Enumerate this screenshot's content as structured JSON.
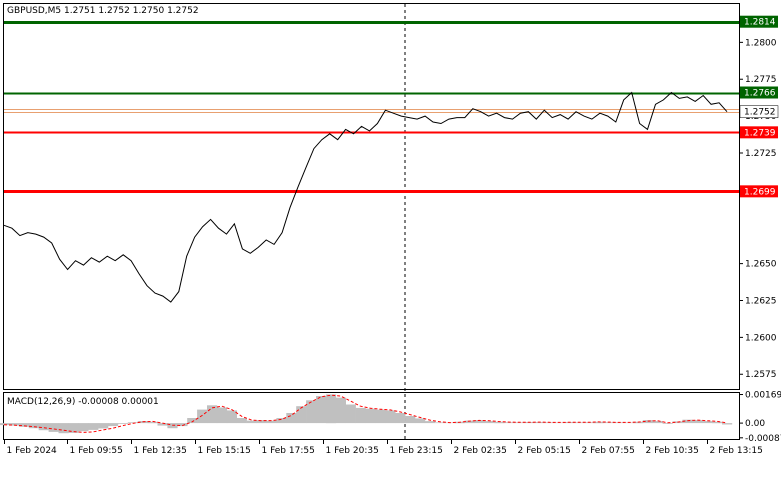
{
  "header": {
    "symbol_line": "GBPUSD,M5  1.2751 1.2752 1.2750 1.2752",
    "macd_line": "MACD(12,26,9) -0.00008 0.00001"
  },
  "chart_data": [
    {
      "type": "line",
      "title": "GBPUSD,M5",
      "ylim": [
        1.2565,
        1.2826
      ],
      "y_ticks": [
        "1.2800",
        "1.2775",
        "1.2750",
        "1.2725",
        "1.2650",
        "1.2625",
        "1.2600",
        "1.2575"
      ],
      "x_ticks": [
        "1 Feb 2024",
        "1 Feb 09:55",
        "1 Feb 12:35",
        "1 Feb 15:15",
        "1 Feb 17:55",
        "1 Feb 20:35",
        "1 Feb 23:15",
        "2 Feb 02:35",
        "2 Feb 05:15",
        "2 Feb 07:55",
        "2 Feb 10:35",
        "2 Feb 13:15"
      ],
      "series": [
        {
          "values": [
            1.2676,
            1.2674,
            1.2669,
            1.2671,
            1.267,
            1.2668,
            1.2664,
            1.2653,
            1.2646,
            1.2652,
            1.2649,
            1.2654,
            1.2651,
            1.2655,
            1.2652,
            1.2656,
            1.2652,
            1.2643,
            1.2635,
            1.263,
            1.2628,
            1.2624,
            1.2631,
            1.2655,
            1.2668,
            1.2675,
            1.268,
            1.2674,
            1.267,
            1.2677,
            1.266,
            1.2657,
            1.2661,
            1.2666,
            1.2663,
            1.2671,
            1.2688,
            1.2702,
            1.2715,
            1.2728,
            1.2734,
            1.2738,
            1.2734,
            1.2741,
            1.2738,
            1.2743,
            1.274,
            1.2745,
            1.2754,
            1.2752,
            1.275,
            1.2749,
            1.2748,
            1.275,
            1.2746,
            1.2745,
            1.2748,
            1.2749,
            1.2749,
            1.2755,
            1.2753,
            1.275,
            1.2752,
            1.2749,
            1.2748,
            1.2752,
            1.2753,
            1.2748,
            1.2754,
            1.2749,
            1.2751,
            1.2748,
            1.2753,
            1.275,
            1.2748,
            1.2752,
            1.275,
            1.2746,
            1.2761,
            1.2766,
            1.2745,
            1.2741,
            1.2758,
            1.2761,
            1.2766,
            1.2762,
            1.2763,
            1.276,
            1.2764,
            1.2758,
            1.2759,
            1.2753
          ]
        }
      ],
      "levels": [
        {
          "value": 1.2814,
          "label": "1.2814",
          "color": "#006400"
        },
        {
          "value": 1.2766,
          "label": "1.2766",
          "color": "#006400"
        },
        {
          "value": 1.2739,
          "label": "1.2739",
          "color": "#ff0000"
        },
        {
          "value": 1.2699,
          "label": "1.2699",
          "color": "#ff0000"
        }
      ],
      "bid_ask_lines": [
        1.2755,
        1.2753
      ],
      "current_price": "1.2752",
      "period_separator_label": "1 Feb 23:15",
      "grid": false
    },
    {
      "type": "bar",
      "title": "MACD(12,26,9)",
      "ylim": [
        -0.00094,
        0.00178
      ],
      "y_ticks": [
        "0.00169",
        "0.00",
        "-0.00087"
      ],
      "series": [
        {
          "name": "MACD",
          "values": [
            -0.00012,
            -0.00015,
            -0.00022,
            -0.0003,
            -0.00042,
            -0.00052,
            -0.0006,
            -0.00058,
            -0.00048,
            -0.0004,
            -0.00032,
            -0.00018,
            -5e-05,
            5e-05,
            0.00012,
            8e-05,
            -0.00015,
            -0.0003,
            -0.00018,
            0.0003,
            0.0008,
            0.00105,
            0.00092,
            0.00075,
            0.0003,
            0.00015,
            0.00018,
            0.00015,
            0.0003,
            0.0006,
            0.001,
            0.00135,
            0.0016,
            0.0017,
            0.0015,
            0.0011,
            0.0009,
            0.00085,
            0.0008,
            0.00075,
            0.0006,
            0.00042,
            0.00028,
            0.00012,
            4e-05,
            3e-05,
            8e-05,
            0.00015,
            0.00018,
            0.00012,
            8e-05,
            5e-05,
            4e-05,
            6e-05,
            6e-05,
            4e-05,
            3e-05,
            6e-05,
            4e-05,
            5e-05,
            8e-05,
            5e-05,
            4e-05,
            3e-05,
            8e-05,
            0.00018,
            0.00012,
            -5e-05,
            0.0001,
            0.0002,
            0.00018,
            0.00012,
            8e-05,
            -8e-05
          ]
        },
        {
          "name": "Signal",
          "values": [
            -0.0001,
            -0.00012,
            -0.00016,
            -0.00021,
            -0.00027,
            -0.00034,
            -0.00042,
            -0.0005,
            -0.00055,
            -0.00052,
            -0.0004,
            -0.0003,
            -0.00015,
            -2e-05,
            8e-05,
            0.0001,
            0.0,
            -0.00012,
            -0.00015,
            8e-05,
            0.00045,
            0.0009,
            0.001,
            0.0008,
            0.0004,
            0.00018,
            0.00014,
            0.00015,
            0.00022,
            0.00045,
            0.0009,
            0.00125,
            0.00155,
            0.00165,
            0.0016,
            0.0013,
            0.001,
            0.00088,
            0.00082,
            0.00078,
            0.00066,
            0.0005,
            0.00034,
            0.00018,
            8e-05,
            3e-05,
            5e-05,
            0.00012,
            0.00016,
            0.00014,
            9e-05,
            6e-05,
            5e-05,
            5e-05,
            6e-05,
            5e-05,
            4e-05,
            5e-05,
            5e-05,
            5e-05,
            7e-05,
            6e-05,
            4e-05,
            4e-05,
            6e-05,
            0.00012,
            0.00014,
            2e-05,
            6e-05,
            0.00014,
            0.00018,
            0.00014,
            0.0001,
            1e-05
          ]
        }
      ],
      "colors": {
        "histogram": "#c0c0c0",
        "signal": "#ff0000"
      }
    }
  ]
}
